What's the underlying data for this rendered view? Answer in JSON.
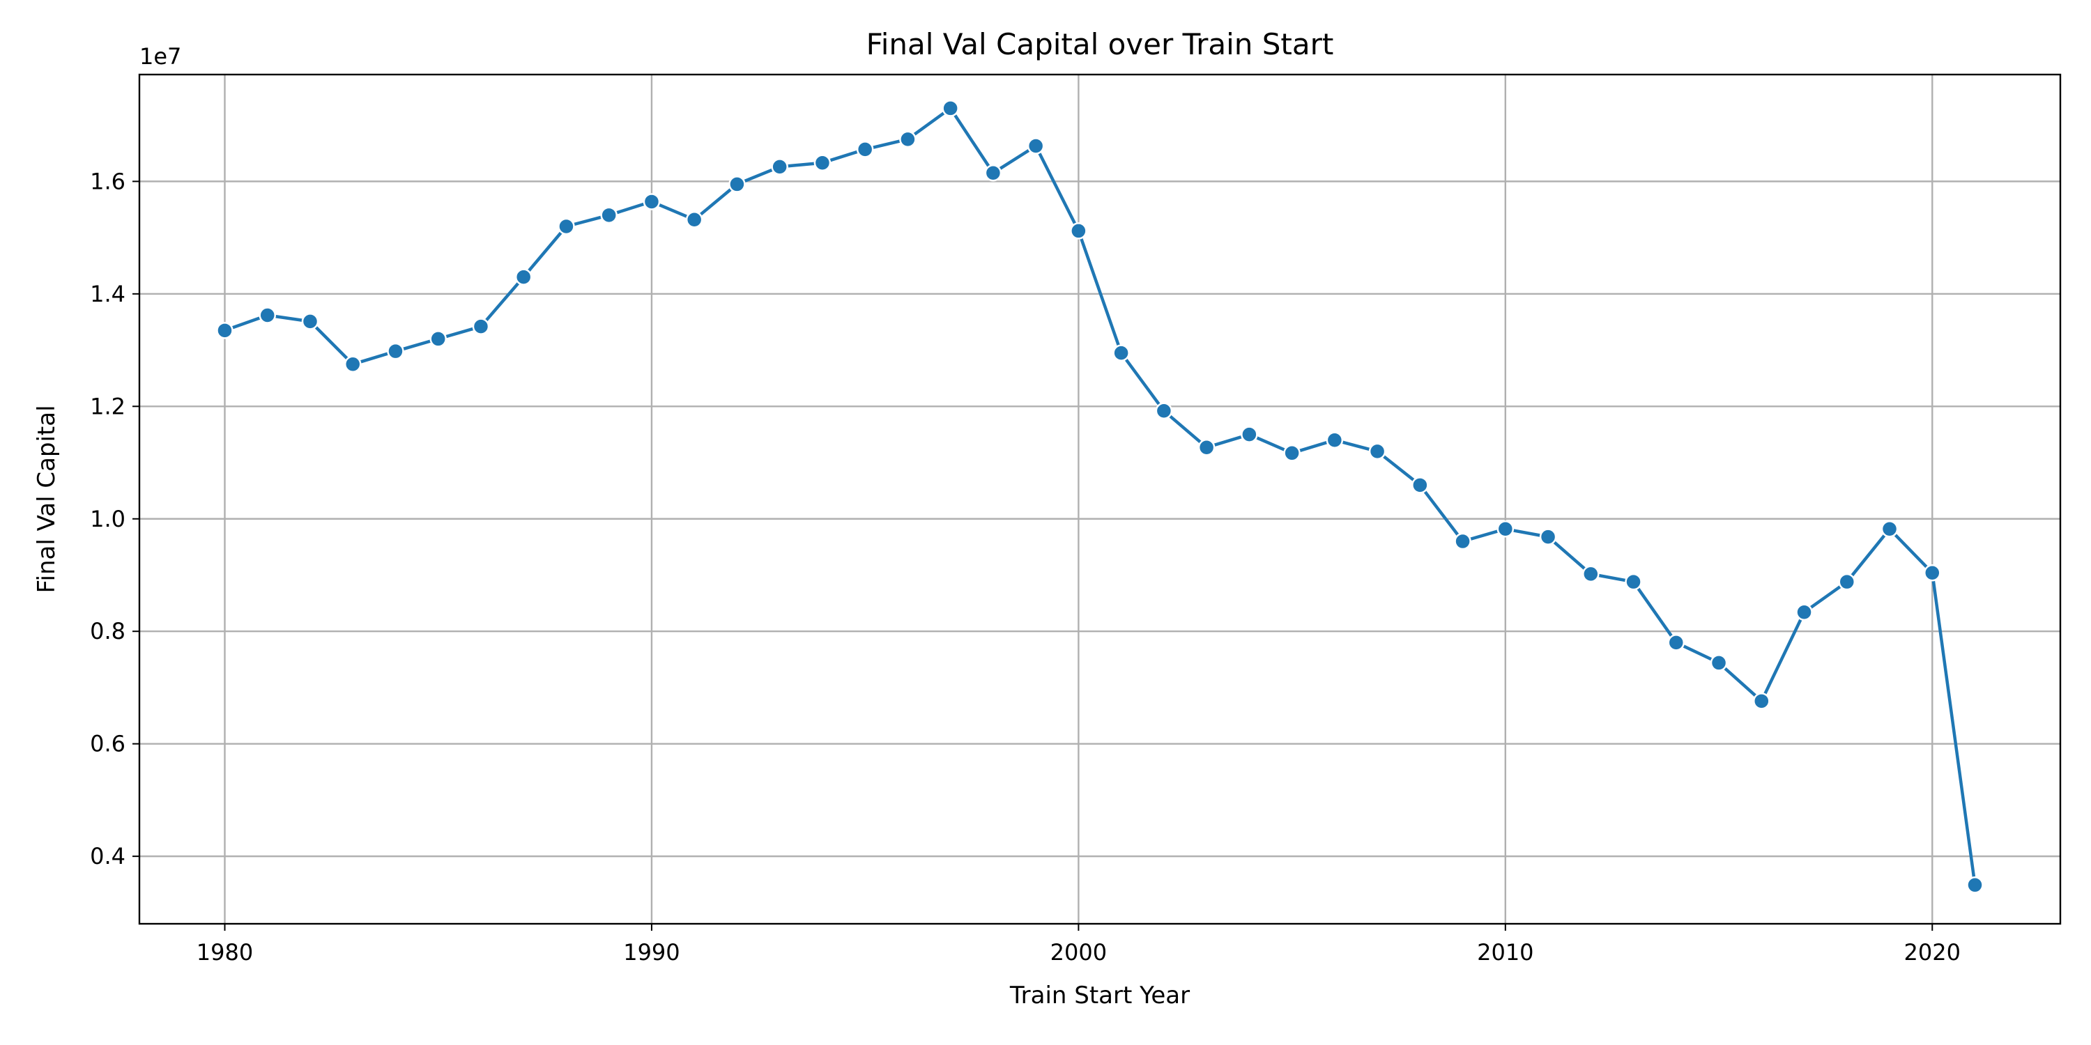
{
  "chart_data": {
    "type": "line",
    "title": "Final Val Capital over Train Start",
    "xlabel": "Train Start Year",
    "ylabel": "Final Val Capital",
    "y_offset_label": "1e7",
    "xlim": [
      1978,
      2023
    ],
    "ylim": [
      0.28,
      1.79
    ],
    "x_ticks": [
      1980,
      1990,
      2000,
      2010,
      2020
    ],
    "y_ticks": [
      0.4,
      0.6,
      0.8,
      1.0,
      1.2,
      1.4,
      1.6
    ],
    "x_tick_labels": [
      "1980",
      "1990",
      "2000",
      "2010",
      "2020"
    ],
    "y_tick_labels": [
      "0.4",
      "0.6",
      "0.8",
      "1.0",
      "1.2",
      "1.4",
      "1.6"
    ],
    "grid": true,
    "series": [
      {
        "color": "#1f77b4",
        "x": [
          1980,
          1981,
          1982,
          1983,
          1984,
          1985,
          1986,
          1987,
          1988,
          1989,
          1990,
          1991,
          1992,
          1993,
          1994,
          1995,
          1996,
          1997,
          1998,
          1999,
          2000,
          2001,
          2002,
          2003,
          2004,
          2005,
          2006,
          2007,
          2008,
          2009,
          2010,
          2011,
          2012,
          2013,
          2014,
          2015,
          2016,
          2017,
          2018,
          2019,
          2020,
          2021
        ],
        "y": [
          1.335,
          1.362,
          1.351,
          1.275,
          1.298,
          1.32,
          1.342,
          1.43,
          1.52,
          1.54,
          1.564,
          1.532,
          1.595,
          1.626,
          1.633,
          1.657,
          1.675,
          1.73,
          1.615,
          1.663,
          1.512,
          1.295,
          1.192,
          1.127,
          1.15,
          1.117,
          1.14,
          1.12,
          1.06,
          0.96,
          0.982,
          0.968,
          0.902,
          0.888,
          0.78,
          0.744,
          0.676,
          0.834,
          0.888,
          0.982,
          0.904,
          0.349
        ]
      }
    ]
  }
}
